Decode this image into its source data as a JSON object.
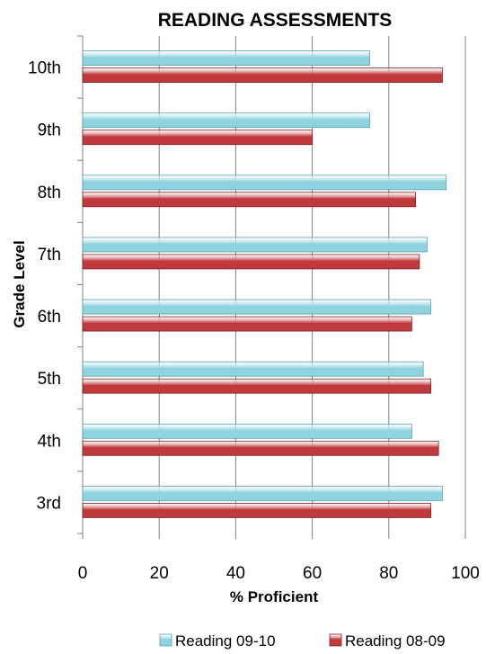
{
  "chart_data": {
    "type": "bar",
    "orientation": "horizontal",
    "title": "READING ASSESSMENTS",
    "xlabel": "% Proficient",
    "ylabel": "Grade Level",
    "xlim": [
      0,
      100
    ],
    "x_ticks": [
      0,
      20,
      40,
      60,
      80,
      100
    ],
    "categories": [
      "10th",
      "9th",
      "8th",
      "7th",
      "6th",
      "5th",
      "4th",
      "3rd"
    ],
    "series": [
      {
        "name": "Reading 09-10",
        "color": "#8fd3df",
        "values": [
          75,
          75,
          95,
          90,
          91,
          89,
          86,
          94
        ]
      },
      {
        "name": "Reading 08-09",
        "color": "#c0393c",
        "values": [
          94,
          60,
          87,
          88,
          86,
          91,
          93,
          91
        ]
      }
    ],
    "grid": "vertical",
    "legend": "bottom"
  }
}
